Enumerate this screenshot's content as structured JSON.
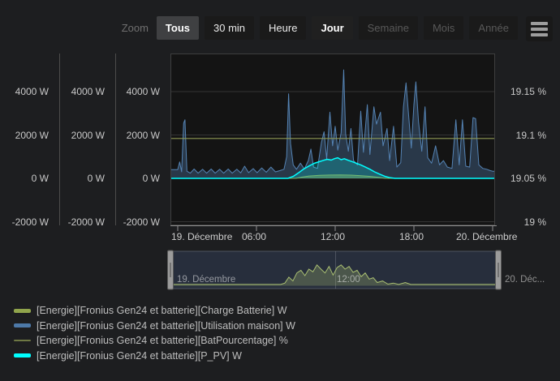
{
  "toolbar": {
    "zoom_label": "Zoom",
    "buttons": [
      {
        "label": "Tous",
        "state": "selected"
      },
      {
        "label": "30 min",
        "state": "normal"
      },
      {
        "label": "Heure",
        "state": "normal"
      },
      {
        "label": "Jour",
        "state": "bold"
      },
      {
        "label": "Semaine",
        "state": "disabled"
      },
      {
        "label": "Mois",
        "state": "disabled"
      },
      {
        "label": "Année",
        "state": "disabled"
      }
    ],
    "menu_icon": "hamburger-icon"
  },
  "chart_data": {
    "type": "area",
    "title": "",
    "x_axis": {
      "tick_labels": [
        "19. Décembre",
        "06:00",
        "12:00",
        "18:00",
        "20. Décembre"
      ],
      "tick_hours": [
        0,
        6,
        12,
        18,
        24
      ],
      "range": "19 Dec 00:00 - 20 Dec 00:00"
    },
    "y_axes_watts": {
      "columns": 3,
      "tick_labels": [
        "4000 W",
        "2000 W",
        "0 W",
        "-2000 W"
      ],
      "tick_values": [
        4000,
        2000,
        0,
        -2000
      ],
      "approx_range": [
        -2200,
        5800
      ]
    },
    "y_axis_percent": {
      "tick_labels": [
        "19.15 %",
        "19.1 %",
        "19.05 %",
        "19 %"
      ],
      "tick_values": [
        19.15,
        19.1,
        19.05,
        19.0
      ],
      "approx_range": [
        18.995,
        19.195
      ]
    },
    "series": [
      {
        "id": "charge-batterie",
        "name": "[Energie][Fronius Gen24 et batterie][Charge Batterie] W",
        "color": "#90a44c",
        "axis": "w",
        "kind": "area",
        "z": 2,
        "fill_opacity": 0.5,
        "line_width": 1,
        "points": [
          [
            0,
            0
          ],
          [
            9,
            0
          ],
          [
            9.5,
            60
          ],
          [
            10,
            110
          ],
          [
            10.8,
            140
          ],
          [
            11.6,
            155
          ],
          [
            12.4,
            160
          ],
          [
            13.2,
            150
          ],
          [
            14,
            125
          ],
          [
            14.7,
            90
          ],
          [
            15.3,
            45
          ],
          [
            15.8,
            0
          ],
          [
            24,
            0
          ]
        ]
      },
      {
        "id": "utilisation-maison",
        "name": "[Energie][Fronius Gen24 et batterie][Utilisation maison] W",
        "color": "#5584b5",
        "axis": "w",
        "kind": "area",
        "z": 1,
        "fill_opacity": 0.33,
        "line_width": 1,
        "points": [
          [
            0,
            400
          ],
          [
            0.15,
            760
          ],
          [
            0.3,
            300
          ],
          [
            0.45,
            2550
          ],
          [
            0.55,
            2700
          ],
          [
            0.7,
            330
          ],
          [
            0.95,
            240
          ],
          [
            1.25,
            430
          ],
          [
            1.55,
            240
          ],
          [
            1.9,
            420
          ],
          [
            2.2,
            240
          ],
          [
            2.55,
            430
          ],
          [
            2.85,
            240
          ],
          [
            3.2,
            420
          ],
          [
            3.5,
            240
          ],
          [
            3.85,
            430
          ],
          [
            4.15,
            240
          ],
          [
            4.5,
            420
          ],
          [
            4.8,
            250
          ],
          [
            5.1,
            560
          ],
          [
            5.4,
            260
          ],
          [
            5.75,
            450
          ],
          [
            6.05,
            260
          ],
          [
            6.4,
            480
          ],
          [
            6.75,
            280
          ],
          [
            7.1,
            520
          ],
          [
            7.45,
            300
          ],
          [
            7.8,
            360
          ],
          [
            8.1,
            420
          ],
          [
            8.3,
            1000
          ],
          [
            8.45,
            3900
          ],
          [
            8.6,
            1600
          ],
          [
            8.8,
            620
          ],
          [
            9.05,
            420
          ],
          [
            9.35,
            700
          ],
          [
            9.65,
            430
          ],
          [
            9.95,
            820
          ],
          [
            10.15,
            1350
          ],
          [
            10.35,
            520
          ],
          [
            10.65,
            460
          ],
          [
            10.95,
            1650
          ],
          [
            11.15,
            2150
          ],
          [
            11.35,
            900
          ],
          [
            11.6,
            3050
          ],
          [
            11.8,
            1500
          ],
          [
            12,
            2400
          ],
          [
            12.2,
            1300
          ],
          [
            12.45,
            2100
          ],
          [
            12.65,
            5000
          ],
          [
            12.8,
            2050
          ],
          [
            13,
            1250
          ],
          [
            13.2,
            2300
          ],
          [
            13.4,
            820
          ],
          [
            13.7,
            620
          ],
          [
            13.95,
            3100
          ],
          [
            14.15,
            1200
          ],
          [
            14.45,
            3400
          ],
          [
            14.65,
            1100
          ],
          [
            14.95,
            3300
          ],
          [
            15.15,
            2500
          ],
          [
            15.45,
            3050
          ],
          [
            15.65,
            1500
          ],
          [
            15.95,
            2300
          ],
          [
            16.15,
            820
          ],
          [
            16.45,
            2400
          ],
          [
            16.7,
            520
          ],
          [
            17,
            720
          ],
          [
            17.2,
            3300
          ],
          [
            17.4,
            4400
          ],
          [
            17.6,
            2900
          ],
          [
            17.8,
            1400
          ],
          [
            18,
            3400
          ],
          [
            18.15,
            4450
          ],
          [
            18.35,
            2600
          ],
          [
            18.6,
            1250
          ],
          [
            18.85,
            3300
          ],
          [
            19.05,
            950
          ],
          [
            19.35,
            700
          ],
          [
            19.65,
            1500
          ],
          [
            19.95,
            620
          ],
          [
            20.25,
            820
          ],
          [
            20.55,
            520
          ],
          [
            20.9,
            460
          ],
          [
            21.2,
            2700
          ],
          [
            21.45,
            620
          ],
          [
            21.7,
            2700
          ],
          [
            21.95,
            560
          ],
          [
            22.25,
            520
          ],
          [
            22.5,
            2800
          ],
          [
            22.7,
            2750
          ],
          [
            22.95,
            620
          ],
          [
            23.25,
            460
          ],
          [
            23.55,
            420
          ],
          [
            23.8,
            360
          ],
          [
            24,
            330
          ]
        ]
      },
      {
        "id": "bat-pourcentage",
        "name": "[Energie][Fronius Gen24 et batterie][BatPourcentage] %",
        "color": "#8f9a55",
        "axis": "pct",
        "kind": "line",
        "z": 4,
        "fill_opacity": 0,
        "line_width": 1.2,
        "points": [
          [
            0,
            19.096
          ],
          [
            24,
            19.096
          ]
        ]
      },
      {
        "id": "p-pv",
        "name": "[Energie][Fronius Gen24 et batterie][P_PV] W",
        "color": "#00ffff",
        "axis": "w",
        "kind": "area",
        "z": 3,
        "fill_opacity": 0.22,
        "line_width": 1.5,
        "points": [
          [
            0,
            0
          ],
          [
            8.4,
            0
          ],
          [
            8.8,
            90
          ],
          [
            9.2,
            250
          ],
          [
            9.6,
            430
          ],
          [
            10,
            570
          ],
          [
            10.4,
            690
          ],
          [
            10.8,
            770
          ],
          [
            11.1,
            830
          ],
          [
            11.4,
            880
          ],
          [
            11.7,
            840
          ],
          [
            11.95,
            910
          ],
          [
            12.2,
            950
          ],
          [
            12.45,
            860
          ],
          [
            12.7,
            905
          ],
          [
            13,
            830
          ],
          [
            13.3,
            770
          ],
          [
            13.6,
            700
          ],
          [
            13.95,
            620
          ],
          [
            14.3,
            520
          ],
          [
            14.65,
            420
          ],
          [
            15,
            300
          ],
          [
            15.4,
            190
          ],
          [
            15.8,
            90
          ],
          [
            16.2,
            25
          ],
          [
            16.55,
            0
          ],
          [
            24,
            0
          ]
        ]
      }
    ]
  },
  "navigator": {
    "labels": {
      "left": "19. Décembre",
      "center": "12:00",
      "right": "20. Déc..."
    },
    "series_color": "#a9bf72",
    "fill_opacity": 0.28,
    "points": [
      [
        0,
        0.05
      ],
      [
        8,
        0.05
      ],
      [
        8.3,
        0.1
      ],
      [
        8.6,
        0.32
      ],
      [
        8.9,
        0.18
      ],
      [
        9.2,
        0.48
      ],
      [
        9.5,
        0.58
      ],
      [
        9.8,
        0.38
      ],
      [
        10.1,
        0.62
      ],
      [
        10.4,
        0.52
      ],
      [
        10.7,
        0.78
      ],
      [
        11,
        0.62
      ],
      [
        11.3,
        0.48
      ],
      [
        11.6,
        0.72
      ],
      [
        11.9,
        0.4
      ],
      [
        12.2,
        0.68
      ],
      [
        12.5,
        0.78
      ],
      [
        12.8,
        0.62
      ],
      [
        13.1,
        0.72
      ],
      [
        13.4,
        0.5
      ],
      [
        13.7,
        0.58
      ],
      [
        14,
        0.34
      ],
      [
        14.3,
        0.48
      ],
      [
        14.6,
        0.25
      ],
      [
        14.9,
        0.3
      ],
      [
        15.2,
        0.12
      ],
      [
        15.6,
        0.18
      ],
      [
        16,
        0.06
      ],
      [
        16.4,
        0.1
      ],
      [
        16.8,
        0.05
      ],
      [
        17.3,
        0.12
      ],
      [
        17.7,
        0.05
      ],
      [
        24,
        0.05
      ]
    ]
  },
  "legend": {
    "items": [
      {
        "label": "[Energie][Fronius Gen24 et batterie][Charge Batterie] W",
        "color": "#90a44c",
        "thickness": "thick"
      },
      {
        "label": "[Energie][Fronius Gen24 et batterie][Utilisation maison] W",
        "color": "#4d79a8",
        "thickness": "thick"
      },
      {
        "label": "[Energie][Fronius Gen24 et batterie][BatPourcentage] %",
        "color": "#6e7844",
        "thickness": "thin"
      },
      {
        "label": "[Energie][Fronius Gen24 et batterie][P_PV] W",
        "color": "#00ffff",
        "thickness": "thick"
      }
    ]
  },
  "colors": {
    "page_bg": "#1d1e20",
    "plot_bg": "#141414",
    "gridline": "#343434",
    "axis_line": "#8f8f8f",
    "navigator_bg": "#272e3c",
    "navigator_handle": "#9b9b9b"
  }
}
